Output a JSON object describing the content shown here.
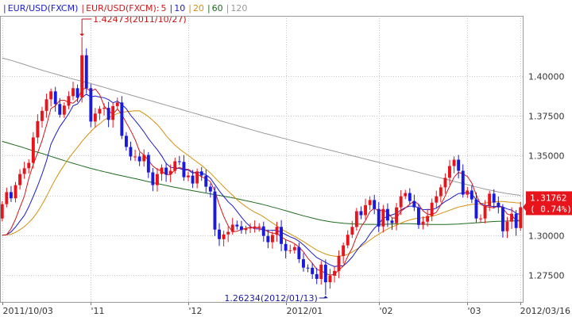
{
  "chart_data": {
    "type": "candlestick",
    "symbol": "EUR/USD(FXCM)",
    "legend": {
      "sep": "|",
      "instrument": "EUR/USD(FXCM)",
      "ma_prefix": "EUR/USD(FXCM):",
      "ma_items": [
        {
          "label": "5",
          "color": "#d0181b"
        },
        {
          "label": "10",
          "color": "#1c1ccc"
        },
        {
          "label": "20",
          "color": "#d4900e"
        },
        {
          "label": "60",
          "color": "#1e6b1e"
        },
        {
          "label": "120",
          "color": "#999999"
        }
      ]
    },
    "ylim": [
      1.258,
      1.438
    ],
    "yticks": [
      {
        "value": 1.4,
        "label": "1.40000"
      },
      {
        "value": 1.375,
        "label": "1.37500"
      },
      {
        "value": 1.35,
        "label": "1.35000"
      },
      {
        "value": 1.325,
        "label": "1.32500"
      },
      {
        "value": 1.3,
        "label": "1.30000"
      },
      {
        "value": 1.275,
        "label": "1.27500"
      }
    ],
    "xticks": [
      {
        "index": 0,
        "label": "2011/10/03"
      },
      {
        "index": 20,
        "label": "'11"
      },
      {
        "index": 42,
        "label": "'12"
      },
      {
        "index": 64,
        "label": "2012/01"
      },
      {
        "index": 85,
        "label": "'02"
      },
      {
        "index": 105,
        "label": "'03"
      },
      {
        "index": 117,
        "label": "2012/03/16"
      }
    ],
    "up_color": "#e8141c",
    "down_color": "#1a1adc",
    "last_price": {
      "value": 1.31762,
      "label": "1.31762",
      "change": "( 0.74%)",
      "color": "#e8141c"
    },
    "annotations": [
      {
        "index": 18,
        "value": 1.42473,
        "text": "1.42473(2011/10/27)",
        "color": "#cc1111",
        "position": "above"
      },
      {
        "index": 73,
        "value": 1.26234,
        "text": "1.26234(2012/01/13)",
        "color": "#1a1aaa",
        "position": "below"
      }
    ],
    "close": [
      1.3195,
      1.3271,
      1.3232,
      1.3315,
      1.3385,
      1.3421,
      1.3455,
      1.3615,
      1.3718,
      1.3782,
      1.3855,
      1.3905,
      1.3825,
      1.3758,
      1.3815,
      1.3875,
      1.3925,
      1.3865,
      1.4132,
      1.3925,
      1.3715,
      1.3765,
      1.3795,
      1.3801,
      1.3725,
      1.3812,
      1.3835,
      1.3625,
      1.3555,
      1.3495,
      1.3495,
      1.3465,
      1.3505,
      1.3395,
      1.3315,
      1.3385,
      1.3425,
      1.3381,
      1.3405,
      1.3465,
      1.3461,
      1.3365,
      1.3375,
      1.3325,
      1.3401,
      1.3375,
      1.3305,
      1.3275,
      1.3035,
      1.2975,
      1.3005,
      1.3021,
      1.3066,
      1.3055,
      1.3032,
      1.3042,
      1.3047,
      1.3055,
      1.3055,
      1.2995,
      1.2956,
      1.3002,
      1.3052,
      1.2945,
      1.2902,
      1.2905,
      1.2925,
      1.2849,
      1.2796,
      1.2795,
      1.2755,
      1.2725,
      1.2815,
      1.2704,
      1.2745,
      1.2775,
      1.2869,
      1.2936,
      1.3003,
      1.3052,
      1.3151,
      1.3126,
      1.3189,
      1.3221,
      1.3165,
      1.3055,
      1.3165,
      1.3092,
      1.3076,
      1.3175,
      1.3245,
      1.3265,
      1.3215,
      1.3175,
      1.3065,
      1.3085,
      1.3121,
      1.3205,
      1.3245,
      1.3301,
      1.3361,
      1.3435,
      1.3475,
      1.3405,
      1.3255,
      1.3281,
      1.3225,
      1.3105,
      1.3105,
      1.3185,
      1.3261,
      1.3205,
      1.3175,
      1.3025,
      1.3085,
      1.3135,
      1.3045,
      1.3176
    ],
    "ma": {
      "5": [
        1.3,
        1.3003,
        1.3041,
        1.3101,
        1.3175,
        1.3246,
        1.3356,
        1.3445,
        1.3518,
        1.3596,
        1.3692,
        1.3797,
        1.3814,
        1.3848,
        1.3849,
        1.3835,
        1.3831,
        1.3855,
        1.3917,
        1.3926,
        1.3905,
        1.392,
        1.3884,
        1.3814,
        1.3781,
        1.3762,
        1.3794,
        1.376,
        1.3708,
        1.3658,
        1.3601,
        1.3527,
        1.3504,
        1.3472,
        1.3435,
        1.3413,
        1.3405,
        1.3381,
        1.3382,
        1.3412,
        1.3427,
        1.3415,
        1.3414,
        1.3398,
        1.3385,
        1.3368,
        1.3356,
        1.3336,
        1.3278,
        1.3193,
        1.3118,
        1.3059,
        1.3021,
        1.3025,
        1.3036,
        1.3043,
        1.3049,
        1.3046,
        1.3046,
        1.3039,
        1.3022,
        1.3013,
        1.3012,
        1.299,
        1.2971,
        1.2961,
        1.2946,
        1.2925,
        1.2895,
        1.2854,
        1.2824,
        1.2784,
        1.2777,
        1.2759,
        1.2749,
        1.2753,
        1.2782,
        1.2806,
        1.2866,
        1.2919,
        1.2993,
        1.3053,
        1.3092,
        1.3148,
        1.317,
        1.3151,
        1.316,
        1.3142,
        1.3109,
        1.3107,
        1.3151,
        1.3171,
        1.3195,
        1.3215,
        1.3193,
        1.3153,
        1.3132,
        1.313,
        1.3144,
        1.3191,
        1.3247,
        1.3309,
        1.3365,
        1.3395,
        1.3386,
        1.337,
        1.3328,
        1.3254,
        1.3194,
        1.318,
        1.3176,
        1.3172,
        1.3186,
        1.317,
        1.3133,
        1.3125,
        1.3093,
        1.3093
      ],
      "10": [
        1.3,
        1.3003,
        1.3021,
        1.3051,
        1.3088,
        1.3125,
        1.3179,
        1.3243,
        1.3311,
        1.3386,
        1.3469,
        1.3572,
        1.363,
        1.3683,
        1.3723,
        1.3763,
        1.3814,
        1.3826,
        1.3866,
        1.3887,
        1.387,
        1.3876,
        1.3869,
        1.3865,
        1.3853,
        1.3833,
        1.3844,
        1.3822,
        1.3796,
        1.3754,
        1.3721,
        1.3687,
        1.365,
        1.3608,
        1.3572,
        1.3538,
        1.3499,
        1.3452,
        1.3427,
        1.3424,
        1.342,
        1.341,
        1.341,
        1.339,
        1.3398,
        1.339,
        1.3381,
        1.3358,
        1.3319,
        1.3279,
        1.3244,
        1.321,
        1.3185,
        1.315,
        1.3114,
        1.308,
        1.3054,
        1.304,
        1.3039,
        1.3032,
        1.3029,
        1.3031,
        1.3031,
        1.3018,
        1.3004,
        1.299,
        1.2979,
        1.2962,
        1.2939,
        1.2912,
        1.2885,
        1.2859,
        1.2845,
        1.2829,
        1.2814,
        1.2803,
        1.2807,
        1.2807,
        1.2832,
        1.2862,
        1.2902,
        1.2938,
        1.2964,
        1.3007,
        1.3043,
        1.3072,
        1.3106,
        1.3118,
        1.3128,
        1.3138,
        1.3159,
        1.3174,
        1.3183,
        1.3183,
        1.3172,
        1.316,
        1.3162,
        1.3161,
        1.317,
        1.3191,
        1.3212,
        1.3227,
        1.3246,
        1.3262,
        1.3265,
        1.3269,
        1.3259,
        1.3223,
        1.3201,
        1.3187,
        1.3184,
        1.318,
        1.3184,
        1.3178,
        1.3165,
        1.3158,
        1.3138,
        1.3129
      ],
      "20": [
        1.3,
        1.3002,
        1.3006,
        1.3018,
        1.3034,
        1.3054,
        1.3079,
        1.3109,
        1.3148,
        1.3194,
        1.3244,
        1.3299,
        1.3352,
        1.3399,
        1.3442,
        1.3482,
        1.352,
        1.3554,
        1.359,
        1.3622,
        1.3652,
        1.368,
        1.3701,
        1.3725,
        1.3739,
        1.3753,
        1.3765,
        1.3772,
        1.3777,
        1.378,
        1.3783,
        1.3782,
        1.3765,
        1.3746,
        1.3722,
        1.3696,
        1.3664,
        1.3626,
        1.3595,
        1.3566,
        1.3543,
        1.3522,
        1.3502,
        1.348,
        1.346,
        1.3439,
        1.3415,
        1.3391,
        1.3362,
        1.3334,
        1.3305,
        1.3277,
        1.3251,
        1.3223,
        1.3201,
        1.318,
        1.3161,
        1.3145,
        1.3132,
        1.3115,
        1.3096,
        1.3077,
        1.3058,
        1.3039,
        1.3023,
        1.3008,
        1.2993,
        1.2977,
        1.296,
        1.2942,
        1.2924,
        1.2906,
        1.2893,
        1.2881,
        1.2873,
        1.2868,
        1.2868,
        1.287,
        1.288,
        1.2894,
        1.2911,
        1.293,
        1.2949,
        1.2969,
        1.2989,
        1.3007,
        1.3024,
        1.3039,
        1.3052,
        1.3063,
        1.3076,
        1.3087,
        1.3096,
        1.3103,
        1.3107,
        1.311,
        1.3115,
        1.312,
        1.3127,
        1.3137,
        1.3147,
        1.3157,
        1.3168,
        1.3177,
        1.3183,
        1.3189,
        1.3194,
        1.3196,
        1.3199,
        1.3203,
        1.3207,
        1.3209,
        1.3212,
        1.3212,
        1.3209,
        1.3207,
        1.3204,
        1.3202
      ],
      "60": [
        1.359,
        1.3582,
        1.3574,
        1.3566,
        1.3558,
        1.3549,
        1.354,
        1.3531,
        1.3522,
        1.3514,
        1.3505,
        1.3496,
        1.3487,
        1.3478,
        1.3469,
        1.3461,
        1.3452,
        1.3444,
        1.3436,
        1.3428,
        1.342,
        1.3413,
        1.3406,
        1.3399,
        1.3393,
        1.3386,
        1.338,
        1.3374,
        1.3368,
        1.3362,
        1.3356,
        1.335,
        1.3343,
        1.3337,
        1.3331,
        1.3325,
        1.3319,
        1.3313,
        1.3307,
        1.3301,
        1.3296,
        1.329,
        1.3285,
        1.328,
        1.3275,
        1.327,
        1.3265,
        1.326,
        1.3255,
        1.325,
        1.3245,
        1.324,
        1.3235,
        1.3229,
        1.3223,
        1.3217,
        1.3211,
        1.3205,
        1.3199,
        1.3192,
        1.3185,
        1.3177,
        1.317,
        1.3162,
        1.3154,
        1.3146,
        1.3138,
        1.313,
        1.3122,
        1.3115,
        1.3108,
        1.3101,
        1.3095,
        1.309,
        1.3085,
        1.3081,
        1.3078,
        1.3075,
        1.3073,
        1.3071,
        1.307,
        1.3069,
        1.3068,
        1.3068,
        1.3068,
        1.3068,
        1.3068,
        1.3069,
        1.307,
        1.3071,
        1.3072,
        1.3072,
        1.3072,
        1.3071,
        1.307,
        1.3069,
        1.3068,
        1.3067,
        1.3067,
        1.3067,
        1.3067,
        1.3068,
        1.3069,
        1.307,
        1.3072,
        1.3074,
        1.3076,
        1.3078,
        1.308,
        1.3082,
        1.3084,
        1.3086,
        1.3087,
        1.3088,
        1.3089,
        1.309,
        1.309,
        1.309
      ],
      "120": [
        1.4115,
        1.4108,
        1.41,
        1.4092,
        1.4083,
        1.4074,
        1.4065,
        1.4056,
        1.4047,
        1.4038,
        1.403,
        1.4022,
        1.4014,
        1.4006,
        1.3998,
        1.399,
        1.3982,
        1.3975,
        1.3968,
        1.3961,
        1.3954,
        1.3946,
        1.3938,
        1.393,
        1.3922,
        1.3914,
        1.3906,
        1.3898,
        1.389,
        1.3882,
        1.3874,
        1.3866,
        1.3858,
        1.385,
        1.3842,
        1.3834,
        1.3826,
        1.3818,
        1.381,
        1.3802,
        1.3794,
        1.3786,
        1.3778,
        1.377,
        1.3762,
        1.3754,
        1.3746,
        1.3738,
        1.373,
        1.3722,
        1.3714,
        1.3706,
        1.3698,
        1.369,
        1.3682,
        1.3674,
        1.3666,
        1.3658,
        1.365,
        1.3642,
        1.3635,
        1.3628,
        1.362,
        1.3613,
        1.3606,
        1.3598,
        1.3591,
        1.3584,
        1.3577,
        1.357,
        1.3563,
        1.3556,
        1.3549,
        1.3542,
        1.3535,
        1.3528,
        1.3521,
        1.3514,
        1.3507,
        1.35,
        1.3493,
        1.3486,
        1.3479,
        1.3472,
        1.3465,
        1.3458,
        1.3451,
        1.3444,
        1.3437,
        1.343,
        1.3423,
        1.3416,
        1.3409,
        1.3402,
        1.3395,
        1.3388,
        1.3381,
        1.3374,
        1.3367,
        1.336,
        1.3353,
        1.3346,
        1.3339,
        1.3332,
        1.3325,
        1.3318,
        1.3311,
        1.3304,
        1.3297,
        1.329,
        1.3284,
        1.3278,
        1.3272,
        1.3267,
        1.3262,
        1.3258,
        1.3254,
        1.325
      ]
    }
  }
}
